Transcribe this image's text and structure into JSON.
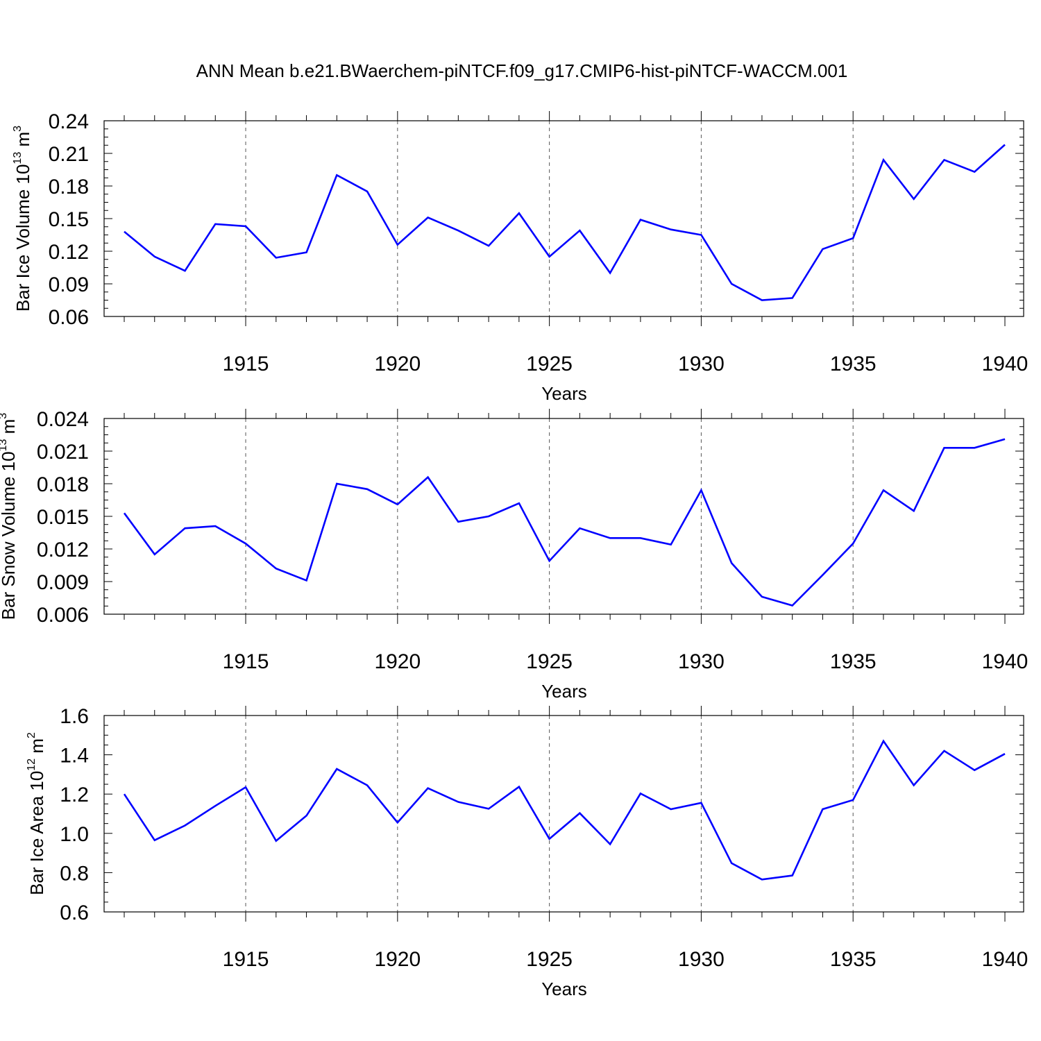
{
  "title": "ANN Mean b.e21.BWaerchem-piNTCF.f09_g17.CMIP6-hist-piNTCF-WACCM.001",
  "colors": {
    "line": "#0000ff",
    "axis": "#000000",
    "grid": "#555555"
  },
  "chart_data": [
    {
      "type": "line",
      "ylabel_text": "Bar Ice Volume 10",
      "ylabel_exp": "13",
      "ylabel_unit": " m",
      "ylabel_unit_exp": "3",
      "xlabel": "Years",
      "xlim": [
        1911,
        1940
      ],
      "ylim": [
        0.06,
        0.24
      ],
      "yticks": [
        "0.06",
        "0.09",
        "0.12",
        "0.15",
        "0.18",
        "0.21",
        "0.24"
      ],
      "xticks": [
        "1915",
        "1920",
        "1925",
        "1930",
        "1935",
        "1940"
      ],
      "grid_x": true,
      "x": [
        1911,
        1912,
        1913,
        1914,
        1915,
        1916,
        1917,
        1918,
        1919,
        1920,
        1921,
        1922,
        1923,
        1924,
        1925,
        1926,
        1927,
        1928,
        1929,
        1930,
        1931,
        1932,
        1933,
        1934,
        1935,
        1936,
        1937,
        1938,
        1939,
        1940
      ],
      "values": [
        0.138,
        0.115,
        0.102,
        0.145,
        0.143,
        0.114,
        0.119,
        0.19,
        0.175,
        0.126,
        0.151,
        0.139,
        0.125,
        0.155,
        0.115,
        0.139,
        0.1,
        0.149,
        0.14,
        0.135,
        0.09,
        0.075,
        0.077,
        0.122,
        0.132,
        0.204,
        0.168,
        0.204,
        0.193,
        0.218
      ]
    },
    {
      "type": "line",
      "ylabel_text": "Bar Snow Volume 10",
      "ylabel_exp": "13",
      "ylabel_unit": " m",
      "ylabel_unit_exp": "3",
      "xlabel": "Years",
      "xlim": [
        1911,
        1940
      ],
      "ylim": [
        0.006,
        0.024
      ],
      "yticks": [
        "0.006",
        "0.009",
        "0.012",
        "0.015",
        "0.018",
        "0.021",
        "0.024"
      ],
      "xticks": [
        "1915",
        "1920",
        "1925",
        "1930",
        "1935",
        "1940"
      ],
      "grid_x": true,
      "x": [
        1911,
        1912,
        1913,
        1914,
        1915,
        1916,
        1917,
        1918,
        1919,
        1920,
        1921,
        1922,
        1923,
        1924,
        1925,
        1926,
        1927,
        1928,
        1929,
        1930,
        1931,
        1932,
        1933,
        1934,
        1935,
        1936,
        1937,
        1938,
        1939,
        1940
      ],
      "values": [
        0.0153,
        0.0115,
        0.0139,
        0.0141,
        0.0125,
        0.0102,
        0.0091,
        0.018,
        0.0175,
        0.0161,
        0.0186,
        0.0145,
        0.015,
        0.0162,
        0.0109,
        0.0139,
        0.013,
        0.013,
        0.0124,
        0.0174,
        0.0107,
        0.0076,
        0.0068,
        0.0096,
        0.0125,
        0.0174,
        0.0155,
        0.0213,
        0.0213,
        0.0221
      ]
    },
    {
      "type": "line",
      "ylabel_text": "Bar Ice Area 10",
      "ylabel_exp": "12",
      "ylabel_unit": " m",
      "ylabel_unit_exp": "2",
      "xlabel": "Years",
      "xlim": [
        1911,
        1940
      ],
      "ylim": [
        0.6,
        1.6
      ],
      "yticks": [
        "0.6",
        "0.8",
        "1.0",
        "1.2",
        "1.4",
        "1.6"
      ],
      "xticks": [
        "1915",
        "1920",
        "1925",
        "1930",
        "1935",
        "1940"
      ],
      "grid_x": true,
      "x": [
        1911,
        1912,
        1913,
        1914,
        1915,
        1916,
        1917,
        1918,
        1919,
        1920,
        1921,
        1922,
        1923,
        1924,
        1925,
        1926,
        1927,
        1928,
        1929,
        1930,
        1931,
        1932,
        1933,
        1934,
        1935,
        1936,
        1937,
        1938,
        1939,
        1940
      ],
      "values": [
        1.2,
        0.965,
        1.04,
        1.14,
        1.235,
        0.962,
        1.09,
        1.328,
        1.245,
        1.055,
        1.23,
        1.16,
        1.125,
        1.237,
        0.972,
        1.103,
        0.945,
        1.203,
        1.123,
        1.155,
        0.848,
        0.765,
        0.785,
        1.123,
        1.17,
        1.47,
        1.245,
        1.42,
        1.322,
        1.405
      ]
    }
  ]
}
